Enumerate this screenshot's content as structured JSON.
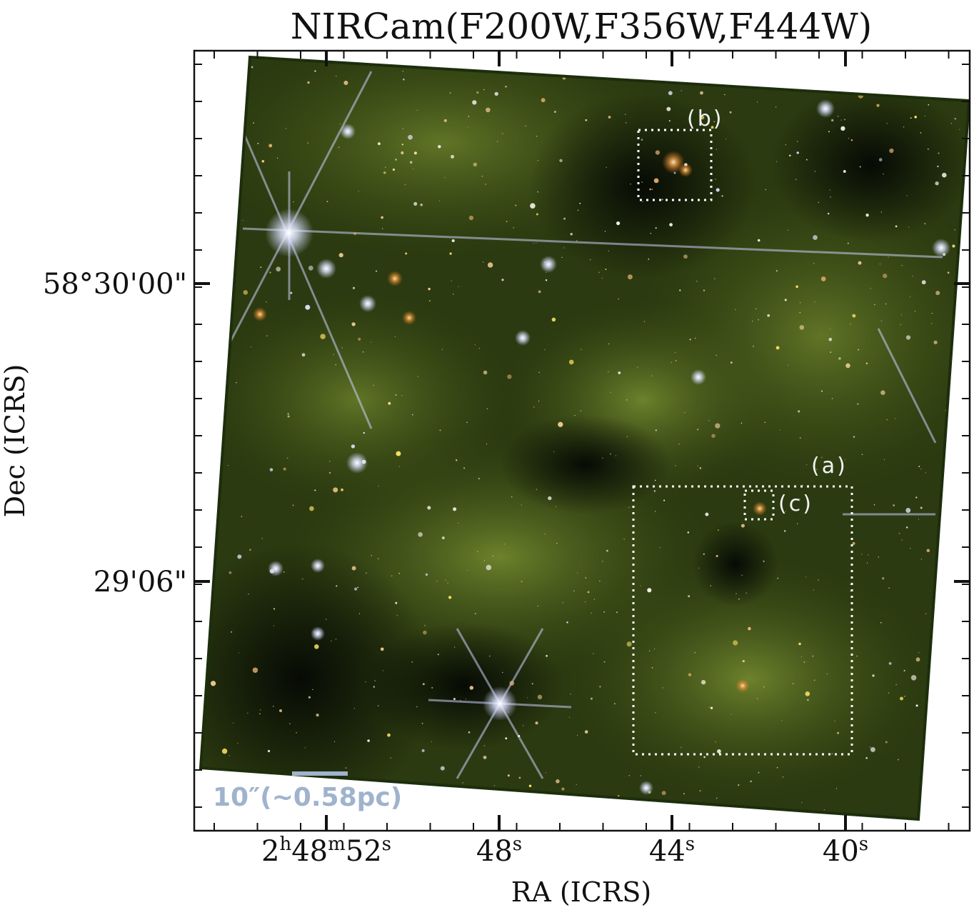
{
  "title": "NIRCam(F200W,F356W,F444W)",
  "xaxis": {
    "label": "RA (ICRS)",
    "ticks": [
      {
        "label": "2h48m52s"
      },
      {
        "label": "48s"
      },
      {
        "label": "44s"
      },
      {
        "label": "40s"
      }
    ]
  },
  "yaxis": {
    "label": "Dec (ICRS)",
    "ticks": [
      {
        "label": "58°30'00\""
      },
      {
        "label": "29'06\""
      }
    ]
  },
  "regions": [
    {
      "label": "(a)"
    },
    {
      "label": "(b)"
    },
    {
      "label": "(c)"
    }
  ],
  "scalebar": {
    "label": "10″(∼0.58pc)"
  },
  "colors": {
    "frame": "#111111",
    "region_box": "#ffffff",
    "scalebar": "#9fb3cc",
    "nebula": "#4a5e1c",
    "background_sky": "#0e1608"
  }
}
